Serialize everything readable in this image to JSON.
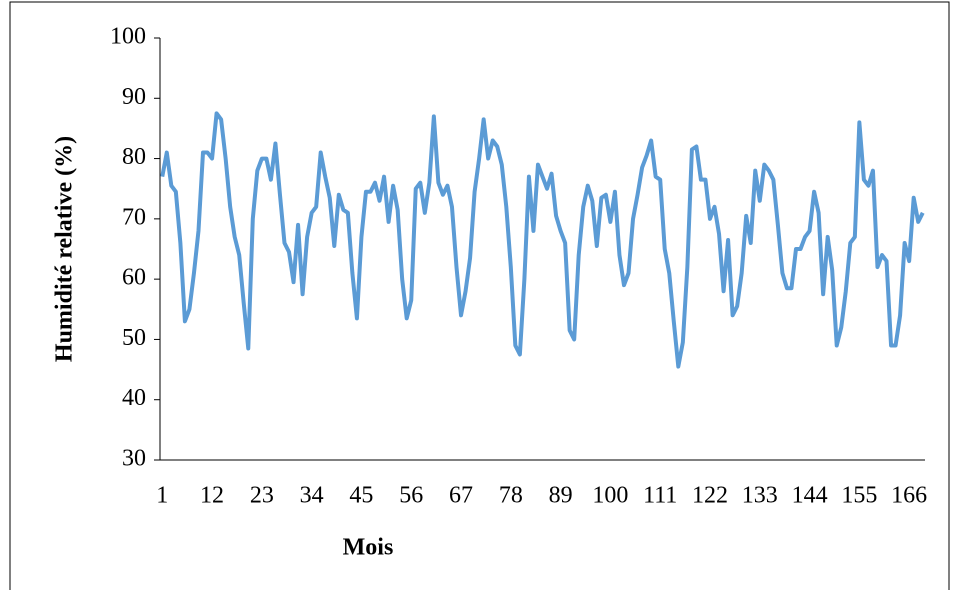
{
  "chart_data": {
    "type": "line",
    "y_label": "Humidité relative (%)",
    "x_label": "Mois",
    "color": "#5b9bd5",
    "ylim": [
      30,
      100
    ],
    "yticks": [
      30,
      40,
      50,
      60,
      70,
      80,
      90,
      100
    ],
    "grid": false,
    "categories": [
      1,
      null,
      null,
      null,
      null,
      null,
      null,
      null,
      null,
      null,
      null,
      12,
      null,
      null,
      null,
      null,
      null,
      null,
      null,
      null,
      null,
      null,
      23,
      null,
      null,
      null,
      null,
      null,
      null,
      null,
      null,
      null,
      null,
      34,
      null,
      null,
      null,
      null,
      null,
      null,
      null,
      null,
      null,
      null,
      45,
      null,
      null,
      null,
      null,
      null,
      null,
      null,
      null,
      null,
      null,
      56,
      null,
      null,
      null,
      null,
      null,
      null,
      null,
      null,
      null,
      null,
      67,
      null,
      null,
      null,
      null,
      null,
      null,
      null,
      null,
      null,
      null,
      78,
      null,
      null,
      null,
      null,
      null,
      null,
      null,
      null,
      null,
      null,
      89,
      null,
      null,
      null,
      null,
      null,
      null,
      null,
      null,
      null,
      null,
      100,
      null,
      null,
      null,
      null,
      null,
      null,
      null,
      null,
      null,
      null,
      111,
      null,
      null,
      null,
      null,
      null,
      null,
      null,
      null,
      null,
      null,
      122,
      null,
      null,
      null,
      null,
      null,
      null,
      null,
      null,
      null,
      null,
      133,
      null,
      null,
      null,
      null,
      null,
      null,
      null,
      null,
      null,
      null,
      144,
      null,
      null,
      null,
      null,
      null,
      null,
      null,
      null,
      null,
      null,
      155,
      null,
      null,
      null,
      null,
      null,
      null,
      null,
      null,
      null,
      null,
      166,
      null,
      null,
      null
    ],
    "values": [
      77,
      81,
      75.5,
      74.5,
      66,
      53,
      55,
      61,
      68,
      81,
      81,
      80,
      87.5,
      86.5,
      80,
      72,
      67,
      64,
      56,
      48.5,
      70,
      78,
      80,
      80,
      76.5,
      82.5,
      74,
      66,
      64.5,
      59.5,
      69,
      57.5,
      67,
      71,
      72,
      81,
      77,
      73.5,
      65.5,
      74,
      71.5,
      71,
      61,
      53.5,
      67,
      74.5,
      74.5,
      76,
      73,
      77,
      69.5,
      75.5,
      71.5,
      60,
      53.5,
      56.5,
      75,
      76,
      71,
      76,
      87,
      76,
      74,
      75.5,
      72,
      62,
      54,
      58,
      63.5,
      74.5,
      80,
      86.5,
      80,
      83,
      82,
      79,
      72,
      62,
      49,
      47.5,
      60,
      77,
      68,
      79,
      77,
      75,
      77.5,
      70.5,
      68,
      66,
      51.5,
      50,
      64,
      72,
      75.5,
      73,
      65.5,
      73.5,
      74,
      69.5,
      74.5,
      64,
      59,
      61,
      70,
      74,
      78.5,
      80.5,
      83,
      77,
      76.5,
      65,
      61,
      53,
      45.5,
      49.5,
      62,
      81.5,
      82,
      76.5,
      76.5,
      70,
      72,
      67.5,
      58,
      66.5,
      54,
      55.5,
      61,
      70.5,
      66,
      78,
      73,
      79,
      78,
      76.5,
      69,
      61,
      58.5,
      58.5,
      65,
      65,
      67,
      68,
      74.5,
      71,
      57.5,
      67,
      61.5,
      49,
      52,
      58,
      66,
      67,
      86,
      76.5,
      75.5,
      78,
      62,
      64,
      63,
      49,
      49,
      54,
      66,
      63,
      73.5,
      69.5,
      71
    ]
  }
}
